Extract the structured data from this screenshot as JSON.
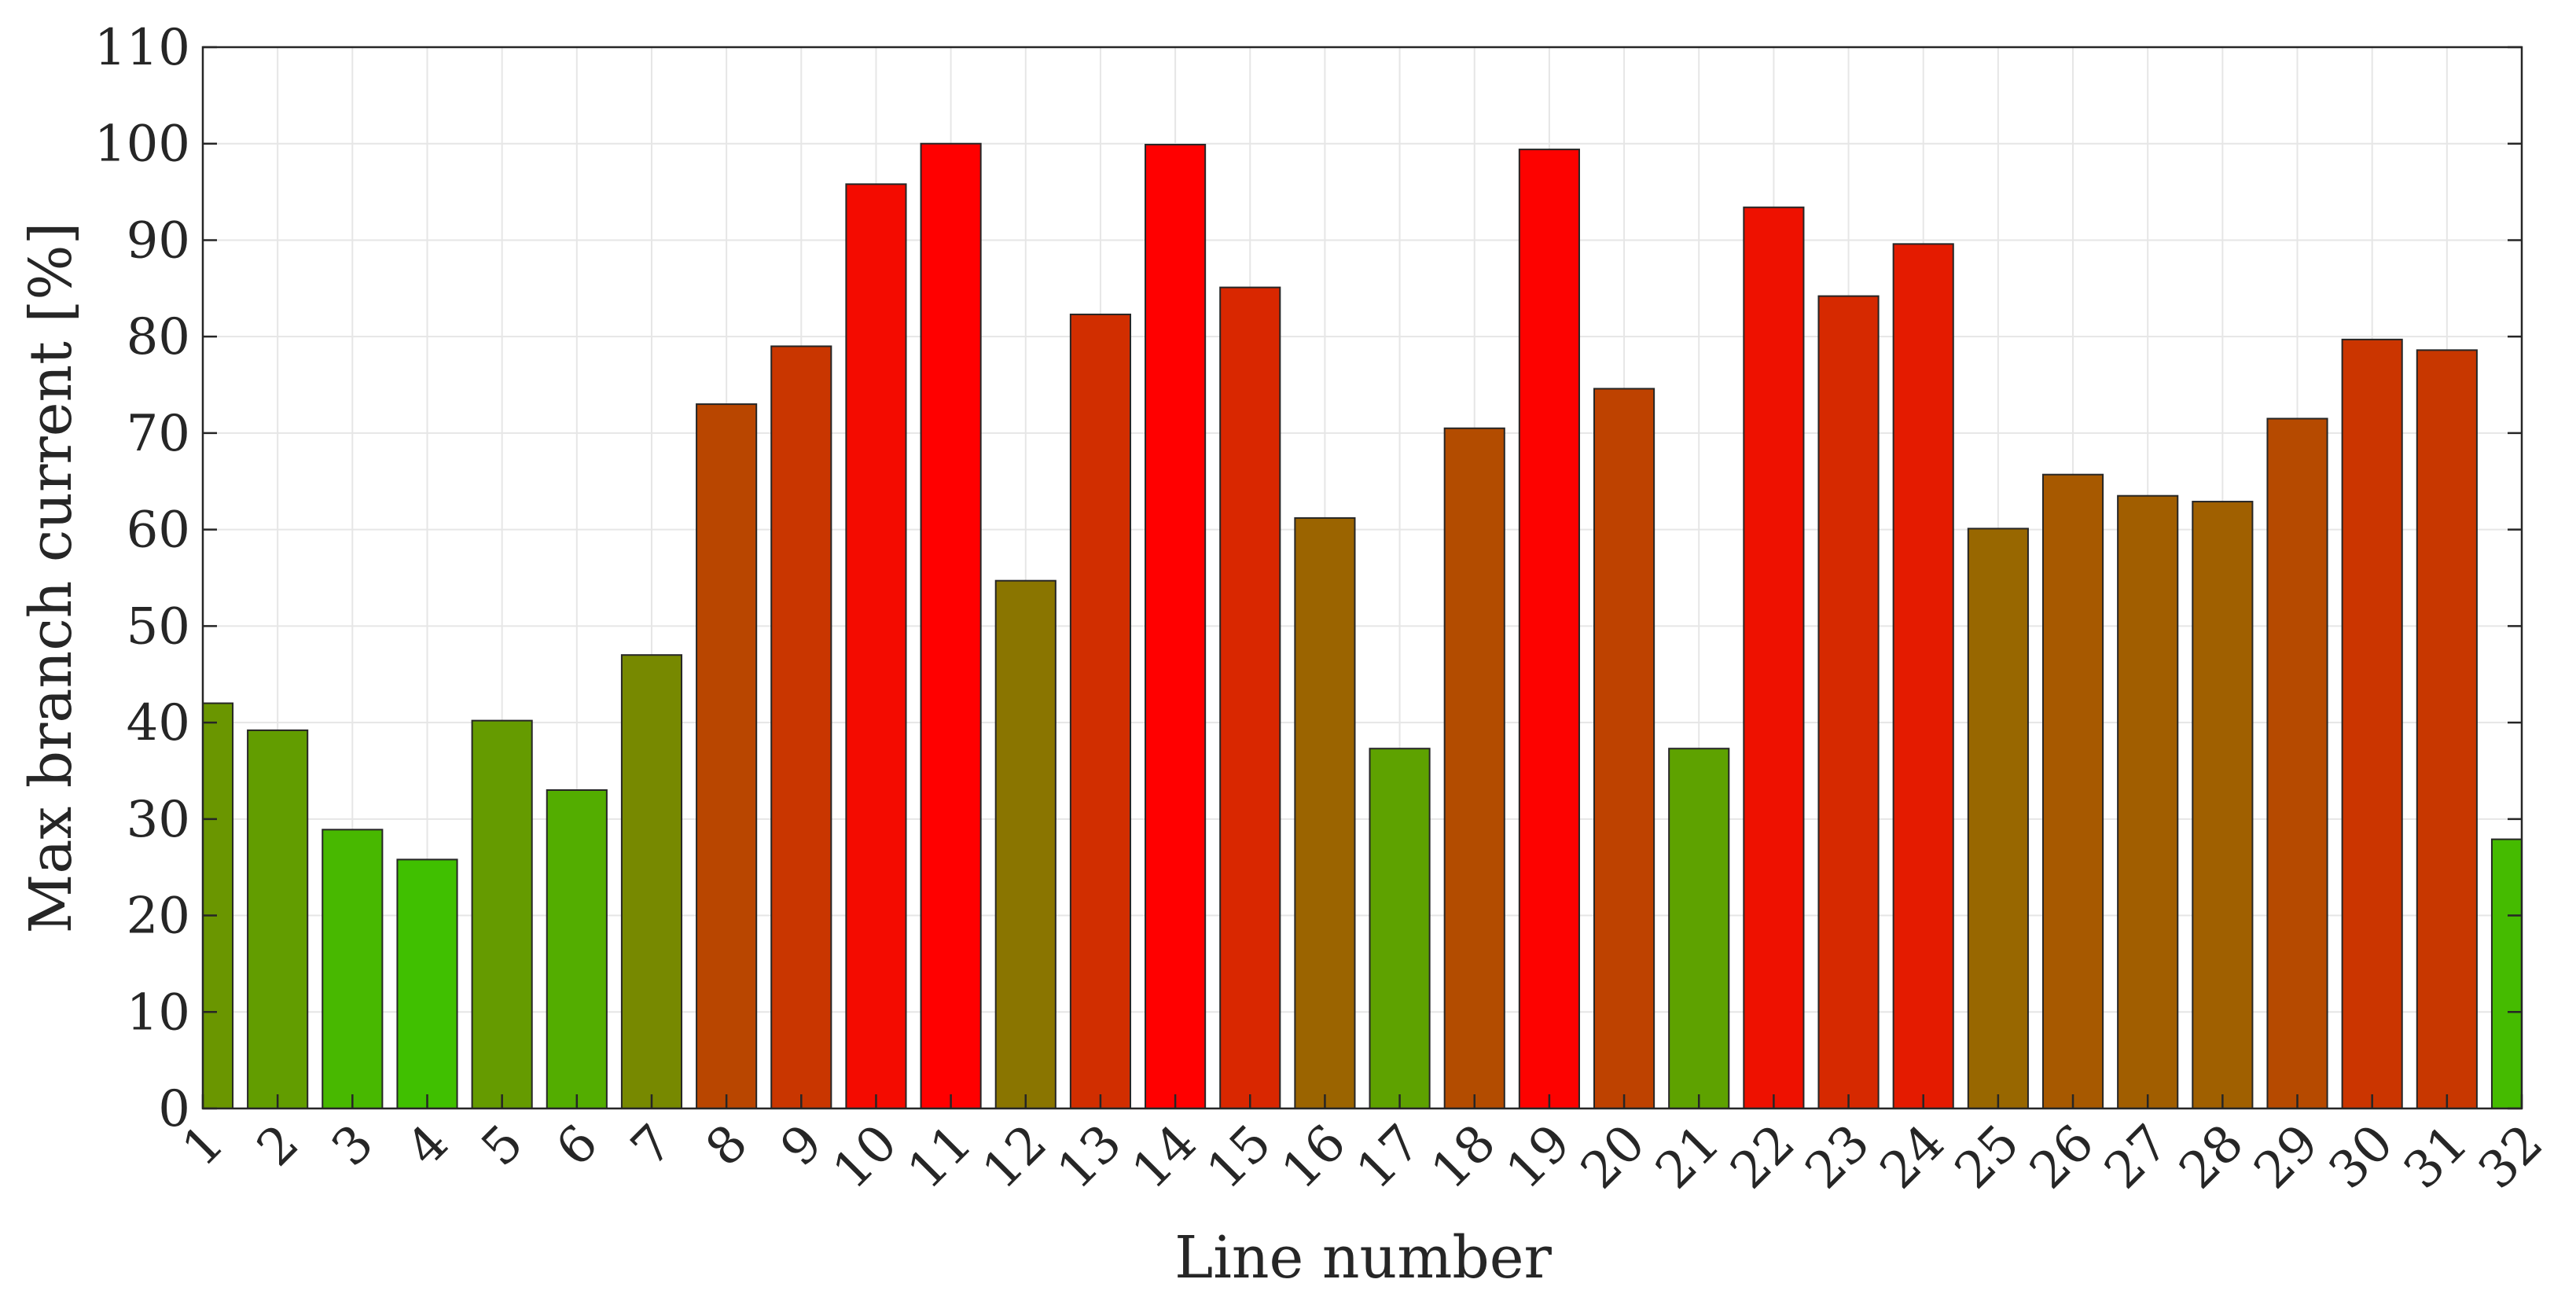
{
  "chart_data": {
    "type": "bar",
    "xlabel": "Line number",
    "ylabel": "Max branch current [%]",
    "categories": [
      "1",
      "2",
      "3",
      "4",
      "5",
      "6",
      "7",
      "8",
      "9",
      "10",
      "11",
      "12",
      "13",
      "14",
      "15",
      "16",
      "17",
      "18",
      "19",
      "20",
      "21",
      "22",
      "23",
      "24",
      "25",
      "26",
      "27",
      "28",
      "29",
      "30",
      "31",
      "32"
    ],
    "values": [
      42.0,
      39.2,
      28.9,
      25.8,
      40.2,
      33.0,
      47.0,
      73.0,
      79.0,
      95.8,
      100.0,
      54.7,
      82.3,
      99.9,
      85.1,
      61.2,
      37.3,
      70.5,
      99.4,
      74.6,
      37.3,
      93.4,
      84.2,
      89.6,
      60.1,
      65.7,
      63.5,
      62.9,
      71.5,
      79.7,
      78.6,
      27.9
    ],
    "ylim": [
      0,
      110
    ],
    "xlim": [
      1,
      32
    ],
    "yticks": [
      "0",
      "10",
      "20",
      "30",
      "40",
      "50",
      "60",
      "70",
      "80",
      "90",
      "100",
      "110"
    ],
    "grid": true,
    "color_scale": {
      "low": "#40c000",
      "high": "#ff0000",
      "low_value": 25.8,
      "high_value": 100.0
    }
  }
}
